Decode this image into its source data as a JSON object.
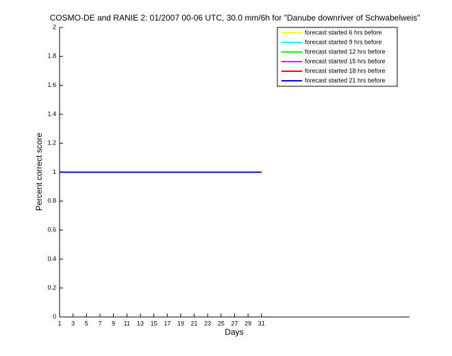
{
  "chart_data": {
    "type": "line",
    "title": "COSMO-DE and RANIE 2: 01/2007 00-06 UTC, 30.0 mm/6h for \"Danube downriver of Schwabelweis\"",
    "xlabel": "Days",
    "ylabel": "Percent correct score",
    "x": [
      1,
      2,
      3,
      4,
      5,
      6,
      7,
      8,
      9,
      10,
      11,
      12,
      13,
      14,
      15,
      16,
      17,
      18,
      19,
      20,
      21,
      22,
      23,
      24,
      25,
      26,
      27,
      28,
      29,
      30,
      31
    ],
    "series": [
      {
        "name": "forecast started 6 hrs before",
        "color": "#ffff00",
        "values": [
          1,
          1,
          1,
          1,
          1,
          1,
          1,
          1,
          1,
          1,
          1,
          1,
          1,
          1,
          1,
          1,
          1,
          1,
          1,
          1,
          1,
          1,
          1,
          1,
          1,
          1,
          1,
          1,
          1,
          1,
          1
        ]
      },
      {
        "name": "forecast started 9 hrs before",
        "color": "#00ffff",
        "values": [
          1,
          1,
          1,
          1,
          1,
          1,
          1,
          1,
          1,
          1,
          1,
          1,
          1,
          1,
          1,
          1,
          1,
          1,
          1,
          1,
          1,
          1,
          1,
          1,
          1,
          1,
          1,
          1,
          1,
          1,
          1
        ]
      },
      {
        "name": "forecast started 12 hrs before",
        "color": "#00ff00",
        "values": [
          1,
          1,
          1,
          1,
          1,
          1,
          1,
          1,
          1,
          1,
          1,
          1,
          1,
          1,
          1,
          1,
          1,
          1,
          1,
          1,
          1,
          1,
          1,
          1,
          1,
          1,
          1,
          1,
          1,
          1,
          1
        ]
      },
      {
        "name": "forecast started 15 hrs before",
        "color": "#ff00ff",
        "values": [
          1,
          1,
          1,
          1,
          1,
          1,
          1,
          1,
          1,
          1,
          1,
          1,
          1,
          1,
          1,
          1,
          1,
          1,
          1,
          1,
          1,
          1,
          1,
          1,
          1,
          1,
          1,
          1,
          1,
          1,
          1
        ]
      },
      {
        "name": "forecast started 18 hrs before",
        "color": "#ff0000",
        "values": [
          1,
          1,
          1,
          1,
          1,
          1,
          1,
          1,
          1,
          1,
          1,
          1,
          1,
          1,
          1,
          1,
          1,
          1,
          1,
          1,
          1,
          1,
          1,
          1,
          1,
          1,
          1,
          1,
          1,
          1,
          1
        ]
      },
      {
        "name": "forecast started 21 hrs before",
        "color": "#0000ff",
        "values": [
          1,
          1,
          1,
          1,
          1,
          1,
          1,
          1,
          1,
          1,
          1,
          1,
          1,
          1,
          1,
          1,
          1,
          1,
          1,
          1,
          1,
          1,
          1,
          1,
          1,
          1,
          1,
          1,
          1,
          1,
          1
        ]
      }
    ],
    "xlim": [
      1,
      53
    ],
    "xticks": [
      1,
      3,
      5,
      7,
      9,
      11,
      13,
      15,
      17,
      19,
      21,
      23,
      25,
      27,
      29,
      31
    ],
    "ylim": [
      0,
      2
    ],
    "yticks": [
      0,
      0.2,
      0.4,
      0.6,
      0.8,
      1,
      1.2,
      1.4,
      1.6,
      1.8,
      2
    ],
    "legend": "upper right"
  }
}
